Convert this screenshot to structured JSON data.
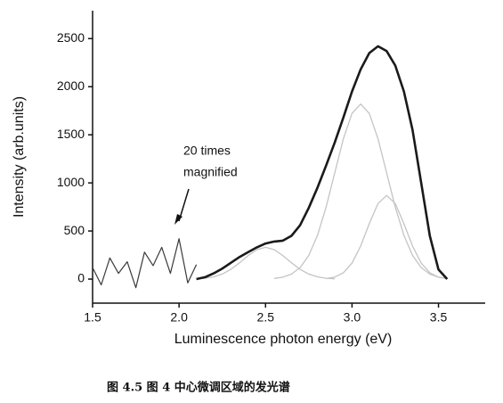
{
  "chart_data": {
    "type": "line",
    "xlabel": "Luminescence photon energy (eV)",
    "ylabel": "Intensity (arb.units)",
    "annotation_lines": [
      "20 times",
      "magnified"
    ],
    "caption": "图 4.5 图 4 中心微调区域的发光谱",
    "x": [
      1.5,
      1.55,
      1.6,
      1.65,
      1.7,
      1.75,
      1.8,
      1.85,
      1.9,
      1.95,
      2.0,
      2.05,
      2.1,
      2.15,
      2.2,
      2.25,
      2.3,
      2.35,
      2.4,
      2.45,
      2.5,
      2.55,
      2.6,
      2.65,
      2.7,
      2.75,
      2.8,
      2.85,
      2.9,
      2.95,
      3.0,
      3.05,
      3.1,
      3.15,
      3.2,
      3.25,
      3.3,
      3.35,
      3.4,
      3.45,
      3.5,
      3.55,
      3.6
    ],
    "series": [
      {
        "color": "#3a3a3a",
        "values": [
          120,
          -60,
          220,
          60,
          180,
          -90,
          280,
          140,
          330,
          60,
          420,
          -40,
          150,
          null,
          null,
          null,
          null,
          null,
          null,
          null,
          null,
          null,
          null,
          null,
          null,
          null,
          null,
          null,
          null,
          null,
          null,
          null,
          null,
          null,
          null,
          null,
          null,
          null,
          null,
          null,
          null,
          null,
          null
        ]
      },
      {
        "color": "#c4c4c4",
        "values": [
          null,
          null,
          null,
          null,
          null,
          null,
          null,
          null,
          null,
          null,
          null,
          null,
          3,
          9,
          23,
          52,
          101,
          170,
          245,
          306,
          330,
          306,
          245,
          170,
          101,
          52,
          23,
          9,
          3,
          null,
          null,
          null,
          null,
          null,
          null,
          null,
          null,
          null,
          null,
          null,
          null,
          null,
          null
        ]
      },
      {
        "color": "#c4c4c4",
        "values": [
          null,
          null,
          null,
          null,
          null,
          null,
          null,
          null,
          null,
          null,
          null,
          null,
          null,
          null,
          null,
          null,
          null,
          null,
          null,
          null,
          null,
          7,
          20,
          52,
          120,
          246,
          454,
          748,
          1104,
          1458,
          1722,
          1820,
          1722,
          1458,
          1104,
          748,
          454,
          246,
          120,
          52,
          20,
          7,
          null
        ]
      },
      {
        "color": "#c4c4c4",
        "values": [
          null,
          null,
          null,
          null,
          null,
          null,
          null,
          null,
          null,
          null,
          null,
          null,
          null,
          null,
          null,
          null,
          null,
          null,
          null,
          null,
          null,
          null,
          null,
          null,
          null,
          null,
          null,
          5,
          21,
          66,
          166,
          343,
          576,
          785,
          870,
          785,
          576,
          343,
          166,
          66,
          21,
          5,
          null
        ]
      },
      {
        "color": "#1a1a1a",
        "values": [
          null,
          null,
          null,
          null,
          null,
          null,
          null,
          null,
          null,
          null,
          null,
          null,
          0,
          20,
          60,
          110,
          170,
          230,
          280,
          330,
          370,
          390,
          400,
          450,
          560,
          740,
          950,
          1180,
          1420,
          1680,
          1950,
          2180,
          2350,
          2420,
          2370,
          2220,
          1950,
          1550,
          1000,
          450,
          100,
          0,
          null
        ]
      }
    ],
    "xlim": [
      1.5,
      3.77
    ],
    "ylim": [
      -250,
      2790
    ],
    "xticks": [
      1.5,
      {
        "value": 2,
        "label": "2.0"
      },
      2.5,
      {
        "value": 3,
        "label": "3.0"
      },
      3.5
    ],
    "yticks": [
      0,
      500,
      1000,
      1500,
      2000,
      2500
    ]
  }
}
